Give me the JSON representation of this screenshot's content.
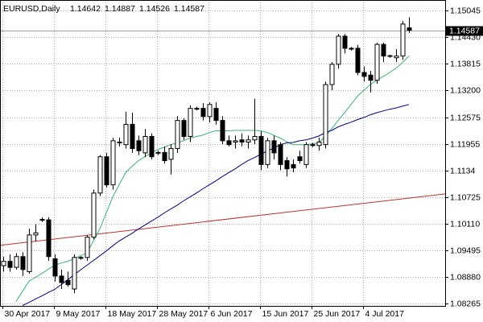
{
  "chart_data": {
    "type": "candlestick",
    "title": "EURUSD,Daily",
    "categories": [
      "30 Apr 2017",
      null,
      null,
      null,
      null,
      null,
      null,
      null,
      "9 May 2017",
      null,
      null,
      null,
      null,
      null,
      null,
      null,
      "18 May 2017",
      null,
      null,
      null,
      null,
      null,
      null,
      null,
      "28 May 2017",
      null,
      null,
      null,
      null,
      null,
      null,
      null,
      "6 Jun 2017",
      null,
      null,
      null,
      null,
      null,
      null,
      null,
      "15 Jun 2017",
      null,
      null,
      null,
      null,
      null,
      null,
      null,
      "25 Jun 2017",
      null,
      null,
      null,
      null,
      null,
      null,
      null,
      "4 Jul 2017",
      null,
      null,
      null,
      null,
      null,
      null,
      null
    ],
    "ohlc": {
      "open": [
        1.0914,
        1.0924,
        1.091,
        1.0935,
        1.09,
        1.0985,
        1.1021,
        1.102,
        1.093,
        1.089,
        1.088,
        1.086,
        1.0933,
        1.0933,
        1.098,
        1.1082,
        1.1166,
        1.1101,
        1.1198,
        1.1194,
        1.1241,
        1.1203,
        1.1175,
        1.1213,
        1.1175,
        1.1176,
        1.116,
        1.1185,
        1.125,
        1.1213,
        1.1278,
        1.1278,
        1.1259,
        1.1278,
        1.125,
        1.1203,
        1.12,
        1.1205,
        1.12,
        1.1205,
        1.1213,
        1.1148,
        1.1203,
        1.1194,
        1.1157,
        1.1148,
        1.1166,
        1.1148,
        1.1194,
        1.1192,
        1.1194,
        1.1333,
        1.138,
        1.1445,
        1.1417,
        1.1417,
        1.1361,
        1.1355,
        1.1343,
        1.1426,
        1.1399,
        1.1395,
        1.1399,
        1.14642
      ],
      "high": [
        1.0935,
        1.094,
        1.0943,
        1.0945,
        1.1,
        1.101,
        1.1026,
        1.1026,
        1.094,
        1.0905,
        1.09,
        1.094,
        1.0936,
        1.0985,
        1.109,
        1.117,
        1.1175,
        1.121,
        1.121,
        1.127,
        1.1268,
        1.1215,
        1.123,
        1.122,
        1.118,
        1.119,
        1.1195,
        1.126,
        1.1255,
        1.1285,
        1.1282,
        1.129,
        1.1292,
        1.1292,
        1.126,
        1.1215,
        1.1215,
        1.122,
        1.1215,
        1.13,
        1.1225,
        1.121,
        1.1215,
        1.12,
        1.1165,
        1.116,
        1.118,
        1.12,
        1.1198,
        1.121,
        1.134,
        1.1385,
        1.145,
        1.145,
        1.142,
        1.1425,
        1.1375,
        1.1365,
        1.143,
        1.143,
        1.1402,
        1.1415,
        1.148,
        1.14887
      ],
      "low": [
        1.09,
        1.09,
        1.0905,
        1.089,
        1.0895,
        1.097,
        1.1015,
        1.0925,
        1.0877,
        1.086,
        1.0865,
        1.085,
        1.0928,
        1.0925,
        1.0975,
        1.1075,
        1.1095,
        1.109,
        1.119,
        1.1185,
        1.1175,
        1.117,
        1.1165,
        1.116,
        1.117,
        1.115,
        1.1125,
        1.1175,
        1.1205,
        1.12,
        1.1274,
        1.125,
        1.1245,
        1.124,
        1.1195,
        1.119,
        1.1185,
        1.119,
        1.1185,
        1.1195,
        1.1135,
        1.114,
        1.116,
        1.1135,
        1.112,
        1.113,
        1.115,
        1.114,
        1.1188,
        1.118,
        1.1185,
        1.132,
        1.137,
        1.1405,
        1.1412,
        1.1355,
        1.134,
        1.1315,
        1.1335,
        1.1385,
        1.1395,
        1.1385,
        1.139,
        1.14526
      ],
      "close": [
        1.0924,
        1.091,
        1.0935,
        1.0905,
        1.0985,
        1.099,
        1.102,
        1.0935,
        1.089,
        1.0875,
        1.087,
        1.0933,
        1.0931,
        1.098,
        1.1082,
        1.1166,
        1.1101,
        1.1203,
        1.12,
        1.1241,
        1.1185,
        1.118,
        1.1213,
        1.1166,
        1.1176,
        1.1157,
        1.1185,
        1.125,
        1.1213,
        1.1278,
        1.1276,
        1.1259,
        1.1287,
        1.125,
        1.1203,
        1.1194,
        1.1203,
        1.12,
        1.1205,
        1.1213,
        1.1148,
        1.1203,
        1.1175,
        1.1148,
        1.1138,
        1.114,
        1.1157,
        1.1194,
        1.1192,
        1.12,
        1.1333,
        1.138,
        1.1445,
        1.1417,
        1.1415,
        1.1361,
        1.1352,
        1.1343,
        1.1426,
        1.1399,
        1.14,
        1.1399,
        1.1473,
        1.14587
      ]
    },
    "series": [
      {
        "color": "#3cb371",
        "values": [
          null,
          null,
          1.0831,
          1.0855,
          1.0878,
          1.0887,
          1.0896,
          1.0906,
          1.0915,
          1.092,
          1.0924,
          1.093,
          1.0937,
          1.0943,
          1.0971,
          1.0999,
          1.1036,
          1.1073,
          1.1101,
          1.1129,
          1.1144,
          1.1157,
          1.1166,
          1.1175,
          1.1183,
          1.1188,
          1.1194,
          1.1198,
          1.1203,
          1.1209,
          1.1213,
          1.1216,
          1.1222,
          1.1226,
          1.1226,
          1.1226,
          1.1227,
          1.1227,
          1.1227,
          1.1227,
          1.1226,
          1.1222,
          1.1216,
          1.1209,
          1.1201,
          1.1194,
          1.1194,
          1.1194,
          1.1196,
          1.1198,
          1.1214,
          1.1231,
          1.125,
          1.1268,
          1.1287,
          1.1306,
          1.132,
          1.1333,
          1.1343,
          1.1352,
          1.1361,
          1.1371,
          1.1384,
          1.1399
        ]
      },
      {
        "color": "#000080",
        "values": [
          null,
          null,
          null,
          1.0822,
          1.0829,
          1.0837,
          1.0844,
          1.0852,
          1.0859,
          1.087,
          1.0881,
          1.0893,
          1.0904,
          1.0915,
          1.0926,
          1.0937,
          1.0948,
          1.096,
          1.0971,
          1.098,
          1.0989,
          1.0999,
          1.1008,
          1.1017,
          1.1026,
          1.1036,
          1.1045,
          1.1054,
          1.1064,
          1.1073,
          1.1082,
          1.1092,
          1.1101,
          1.111,
          1.112,
          1.1129,
          1.1138,
          1.1148,
          1.1157,
          1.1164,
          1.1172,
          1.1179,
          1.1186,
          1.1194,
          1.1198,
          1.1199,
          1.1203,
          1.1205,
          1.1209,
          1.1214,
          1.1222,
          1.1227,
          1.1235,
          1.1241,
          1.1246,
          1.1252,
          1.1257,
          1.1263,
          1.1268,
          1.1272,
          1.1276,
          1.1279,
          1.1283,
          1.1287
        ]
      }
    ],
    "trendline": {
      "color": "#c0302a",
      "values": [
        1.0961,
        1.108
      ]
    },
    "ylim": [
      1.08209,
      1.15287
    ],
    "yticks": [
      1.15045,
      {
        "value": 1.1443,
        "label": "1.14430"
      },
      1.13815,
      {
        "value": 1.132,
        "label": "1.13200"
      },
      1.12575,
      1.11955,
      1.1134,
      1.10725,
      {
        "value": 1.1011,
        "label": "1.10110"
      },
      1.09495,
      {
        "value": 1.0888,
        "label": "1.08880"
      },
      1.08265
    ],
    "grid": true
  }
}
